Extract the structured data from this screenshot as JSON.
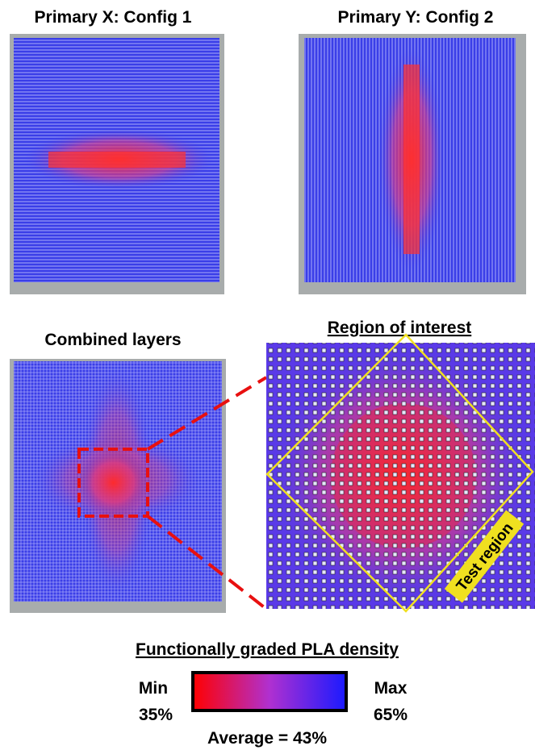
{
  "panels": [
    {
      "title": "Primary X: Config 1"
    },
    {
      "title": "Primary Y: Config 2"
    },
    {
      "title": "Combined layers"
    },
    {
      "title": "Region of interest",
      "annotation": "Test region"
    }
  ],
  "legend": {
    "title": "Functionally graded PLA density",
    "min_label": "Min",
    "min_value": "35%",
    "max_label": "Max",
    "max_value": "65%",
    "average": "Average = 43%"
  }
}
